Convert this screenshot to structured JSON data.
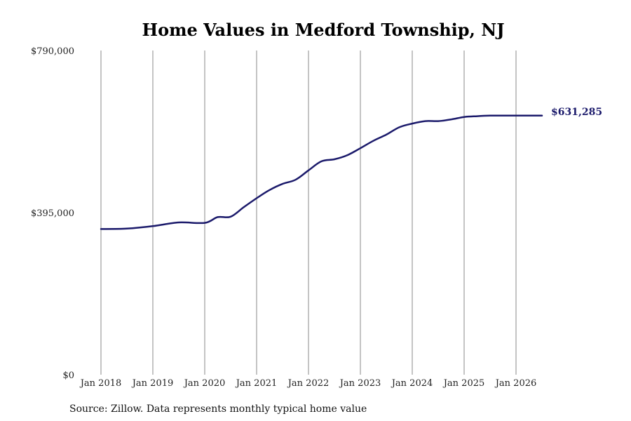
{
  "chart_data": {
    "type": "line",
    "title": "Home Values in Medford Township, NJ",
    "xlabel": "",
    "ylabel": "",
    "x_tick_labels": [
      "Jan 2018",
      "Jan 2019",
      "Jan 2020",
      "Jan 2021",
      "Jan 2022",
      "Jan 2023",
      "Jan 2024",
      "Jan 2025",
      "Jan 2026"
    ],
    "y_tick_labels": [
      "$0",
      "$395,000",
      "$790,000"
    ],
    "y_ticks": [
      0,
      395000,
      790000
    ],
    "ylim": [
      0,
      790000
    ],
    "xlim": [
      "2018-01",
      "2026-07"
    ],
    "grid": "vertical",
    "legend": "none",
    "series": [
      {
        "color": "#1b1a6b",
        "x": [
          "2018-01",
          "2018-07",
          "2019-01",
          "2019-07",
          "2020-01",
          "2020-04",
          "2020-07",
          "2020-10",
          "2021-01",
          "2021-04",
          "2021-07",
          "2021-10",
          "2022-01",
          "2022-04",
          "2022-07",
          "2022-10",
          "2023-01",
          "2023-04",
          "2023-07",
          "2023-10",
          "2024-01",
          "2024-04",
          "2024-07",
          "2024-10",
          "2025-01",
          "2025-04",
          "2025-07",
          "2025-10",
          "2026-01",
          "2026-04",
          "2026-07"
        ],
        "values": [
          355000,
          356000,
          362000,
          371000,
          370000,
          384000,
          385000,
          408000,
          430000,
          450000,
          465000,
          475000,
          498000,
          520000,
          525000,
          535000,
          552000,
          570000,
          585000,
          603000,
          612000,
          618000,
          618000,
          622000,
          628000,
          630000,
          631285,
          631285,
          631285,
          631285,
          631285
        ]
      }
    ],
    "end_label": "$631,285"
  },
  "colors": {
    "line": "#1b1a6b",
    "end_label": "#1b1a6b",
    "grid": "#8a8a8a"
  },
  "source_note": "Source: Zillow. Data represents monthly typical home value"
}
